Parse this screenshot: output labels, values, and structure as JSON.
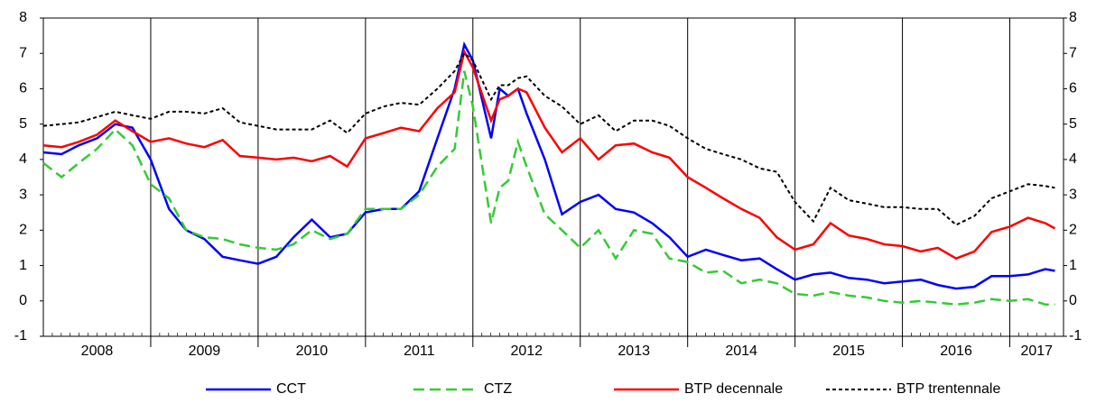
{
  "chart_data": {
    "type": "line",
    "x": [
      2008,
      2008.17,
      2008.33,
      2008.5,
      2008.67,
      2008.83,
      2009,
      2009.17,
      2009.33,
      2009.5,
      2009.67,
      2009.83,
      2010,
      2010.17,
      2010.33,
      2010.5,
      2010.67,
      2010.83,
      2011,
      2011.17,
      2011.33,
      2011.5,
      2011.67,
      2011.83,
      2011.92,
      2012,
      2012.17,
      2012.25,
      2012.33,
      2012.42,
      2012.5,
      2012.67,
      2012.83,
      2013,
      2013.17,
      2013.33,
      2013.5,
      2013.67,
      2013.83,
      2014,
      2014.17,
      2014.33,
      2014.5,
      2014.67,
      2014.83,
      2015,
      2015.17,
      2015.33,
      2015.5,
      2015.67,
      2015.83,
      2016,
      2016.17,
      2016.33,
      2016.5,
      2016.67,
      2016.83,
      2017,
      2017.17,
      2017.33,
      2017.42
    ],
    "series": [
      {
        "name": "CCT",
        "color": "#0000ff",
        "style": "solid",
        "values": [
          4.2,
          4.15,
          4.4,
          4.6,
          5.0,
          4.9,
          4.0,
          2.6,
          2.0,
          1.75,
          1.25,
          1.15,
          1.05,
          1.25,
          1.8,
          2.3,
          1.8,
          1.9,
          2.5,
          2.6,
          2.6,
          3.1,
          4.6,
          6.0,
          7.25,
          6.8,
          4.6,
          6.0,
          5.8,
          6.0,
          5.3,
          4.0,
          2.45,
          2.8,
          3.0,
          2.6,
          2.5,
          2.2,
          1.8,
          1.25,
          1.45,
          1.3,
          1.15,
          1.2,
          0.9,
          0.6,
          0.75,
          0.8,
          0.65,
          0.6,
          0.5,
          0.55,
          0.6,
          0.45,
          0.35,
          0.4,
          0.7,
          0.7,
          0.75,
          0.9,
          0.85
        ]
      },
      {
        "name": "CTZ",
        "color": "#33cc33",
        "style": "dashed",
        "values": [
          3.9,
          3.5,
          3.9,
          4.3,
          4.85,
          4.4,
          3.3,
          2.9,
          2.0,
          1.8,
          1.75,
          1.6,
          1.5,
          1.45,
          1.6,
          2.0,
          1.75,
          1.9,
          2.6,
          2.6,
          2.6,
          3.0,
          3.8,
          4.3,
          6.5,
          5.5,
          2.2,
          3.2,
          3.4,
          4.5,
          3.8,
          2.45,
          2.0,
          1.5,
          2.0,
          1.2,
          2.0,
          1.9,
          1.2,
          1.1,
          0.8,
          0.85,
          0.5,
          0.6,
          0.5,
          0.2,
          0.15,
          0.25,
          0.15,
          0.1,
          0.0,
          -0.05,
          0.0,
          -0.05,
          -0.1,
          -0.05,
          0.05,
          0.0,
          0.05,
          -0.1,
          -0.1
        ]
      },
      {
        "name": "BTP decennale",
        "color": "#ff0000",
        "style": "solid",
        "values": [
          4.4,
          4.35,
          4.5,
          4.7,
          5.1,
          4.8,
          4.5,
          4.6,
          4.45,
          4.35,
          4.55,
          4.1,
          4.05,
          4.0,
          4.05,
          3.95,
          4.1,
          3.8,
          4.6,
          4.75,
          4.9,
          4.8,
          5.45,
          5.9,
          7.05,
          6.6,
          5.1,
          5.7,
          5.8,
          6.0,
          5.9,
          4.9,
          4.2,
          4.6,
          4.0,
          4.4,
          4.45,
          4.2,
          4.05,
          3.5,
          3.2,
          2.9,
          2.6,
          2.35,
          1.8,
          1.45,
          1.6,
          2.2,
          1.85,
          1.75,
          1.6,
          1.55,
          1.4,
          1.5,
          1.2,
          1.4,
          1.95,
          2.1,
          2.35,
          2.2,
          2.05
        ]
      },
      {
        "name": "BTP trentennale",
        "color": "#000000",
        "style": "dotted",
        "values": [
          4.95,
          5.0,
          5.05,
          5.2,
          5.35,
          5.25,
          5.15,
          5.35,
          5.35,
          5.3,
          5.45,
          5.05,
          4.95,
          4.85,
          4.85,
          4.85,
          5.1,
          4.75,
          5.3,
          5.5,
          5.6,
          5.55,
          6.0,
          6.5,
          7.0,
          6.8,
          5.7,
          6.1,
          6.1,
          6.3,
          6.35,
          5.8,
          5.5,
          5.0,
          5.25,
          4.8,
          5.1,
          5.1,
          4.95,
          4.6,
          4.3,
          4.15,
          4.0,
          3.75,
          3.65,
          2.8,
          2.25,
          3.2,
          2.85,
          2.75,
          2.65,
          2.65,
          2.6,
          2.6,
          2.15,
          2.4,
          2.9,
          3.1,
          3.3,
          3.25,
          3.2
        ]
      }
    ],
    "xlim": [
      2008,
      2017.5
    ],
    "xticks": [
      {
        "value": 2008.5,
        "label": "2008"
      },
      {
        "value": 2009.5,
        "label": "2009"
      },
      {
        "value": 2010.5,
        "label": "2010"
      },
      {
        "value": 2011.5,
        "label": "2011"
      },
      {
        "value": 2012.5,
        "label": "2012"
      },
      {
        "value": 2013.5,
        "label": "2013"
      },
      {
        "value": 2014.5,
        "label": "2014"
      },
      {
        "value": 2015.5,
        "label": "2015"
      },
      {
        "value": 2016.5,
        "label": "2016"
      },
      {
        "value": 2017.25,
        "label": "2017"
      }
    ],
    "ylim": [
      -1,
      8
    ],
    "yticks": [
      -1,
      0,
      1,
      2,
      3,
      4,
      5,
      6,
      7,
      8
    ],
    "grid": true,
    "legend": "bottom"
  }
}
